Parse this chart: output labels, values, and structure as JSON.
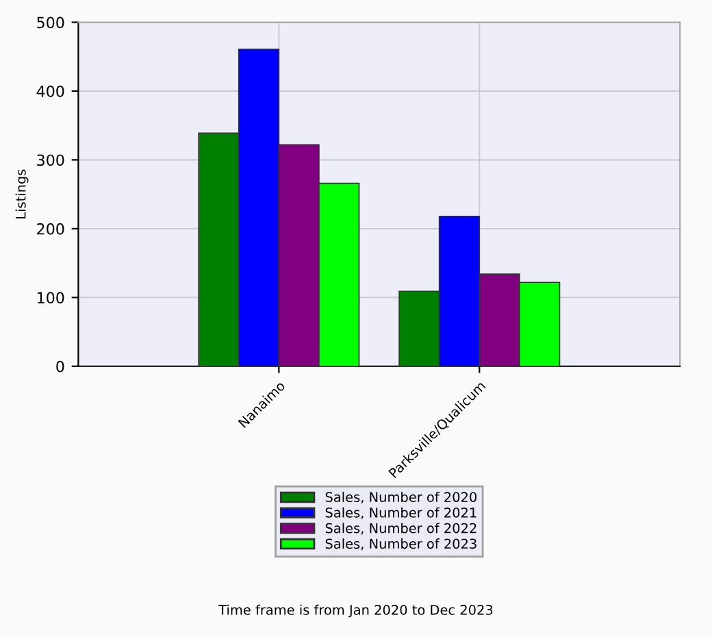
{
  "chart_data": {
    "type": "bar",
    "ylabel": "Listings",
    "categories": [
      "Nanaimo",
      "Parksville/Qualicum"
    ],
    "series": [
      {
        "name": "Sales, Number of 2020",
        "color": "#008000",
        "values": [
          339,
          109
        ]
      },
      {
        "name": "Sales, Number of 2021",
        "color": "#0000ff",
        "values": [
          461,
          218
        ]
      },
      {
        "name": "Sales, Number of 2022",
        "color": "#800080",
        "values": [
          322,
          134
        ]
      },
      {
        "name": "Sales, Number of 2023",
        "color": "#00ff00",
        "values": [
          266,
          122
        ]
      }
    ],
    "ylim": [
      0,
      500
    ],
    "yticks": [
      0,
      100,
      200,
      300,
      400,
      500
    ],
    "grid": true,
    "legend": "bottom",
    "annotations": [
      "Time frame is from Jan 2020 to Dec 2023"
    ]
  }
}
